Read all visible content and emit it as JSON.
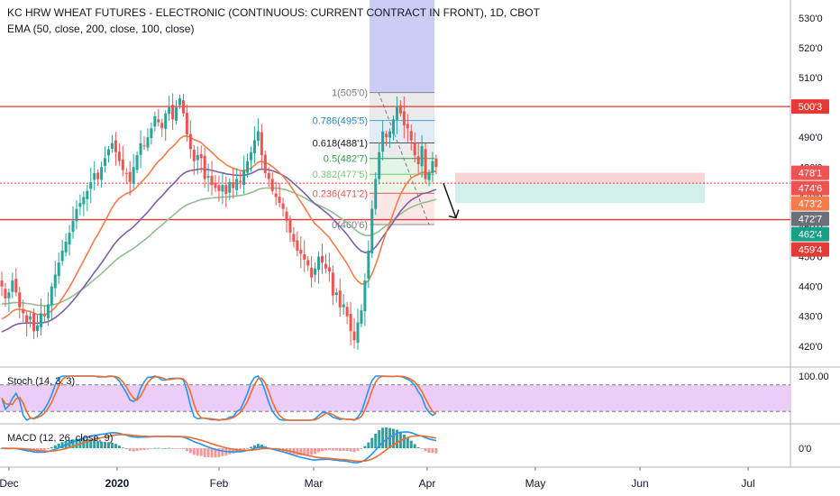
{
  "header": {
    "title": "KC HRW WHEAT FUTURES - ELECTRONIC (CONTINUOUS: CURRENT CONTRACT IN FRONT), 1D, CBOT",
    "ema": "EMA (50, close, 200, close, 100, close)"
  },
  "stoch": {
    "label": "Stoch (14, 3, 3)",
    "scale": [
      "100.00"
    ]
  },
  "macd": {
    "label": "MACD (12, 26, close, 9)",
    "scale": [
      "0'0"
    ]
  },
  "colors": {
    "up": "#26a69a",
    "down": "#ef5350",
    "ema_fast": "#f57c4a",
    "ema_mid": "#7e5fa8",
    "ema_slow": "#8fbf8f",
    "level": "#e53935",
    "stoch_fill": "#e9c8f7",
    "axis": "#131722"
  },
  "chart_data": {
    "type": "candlestick",
    "instrument": "KC HRW WHEAT FUTURES - ELECTRONIC",
    "timeframe": "1D",
    "x_labels": [
      "Dec",
      "2020",
      "Feb",
      "Mar",
      "Apr",
      "May",
      "Jun",
      "Jul"
    ],
    "y_ticks": [
      "530'0",
      "520'0",
      "510'0",
      "500'0",
      "490'0",
      "480'0",
      "470'0",
      "460'0",
      "450'0",
      "440'0",
      "430'0",
      "420'0"
    ],
    "ylim": [
      413,
      536
    ],
    "close_series": [
      440,
      436,
      438,
      442,
      438,
      433,
      431,
      428,
      430,
      425,
      427,
      431,
      430,
      434,
      440,
      444,
      448,
      452,
      455,
      458,
      462,
      466,
      468,
      470,
      472,
      475,
      478,
      476,
      480,
      483,
      486,
      488,
      485,
      482,
      479,
      478,
      475,
      480,
      484,
      488,
      487,
      490,
      493,
      497,
      495,
      493,
      498,
      500,
      496,
      500,
      503,
      498,
      491,
      486,
      482,
      484,
      483,
      476,
      477,
      474,
      473,
      472,
      474,
      471,
      475,
      473,
      476,
      475,
      479,
      482,
      485,
      489,
      492,
      484,
      478,
      476,
      472,
      470,
      468,
      466,
      462,
      458,
      455,
      452,
      451,
      449,
      447,
      443,
      446,
      450,
      448,
      446,
      445,
      437,
      438,
      433,
      434,
      430,
      425,
      422,
      428,
      432,
      442,
      452,
      466,
      476,
      485,
      492,
      490,
      492,
      496,
      500,
      498,
      494,
      493,
      489,
      484,
      481,
      487,
      476,
      478,
      482,
      480
    ],
    "ema_50_end": 473.2,
    "ema_100_end": 462.4,
    "ema_200_end": 459.4,
    "horizontal_levels": [
      500.3,
      462.4
    ],
    "fibonacci": [
      {
        "ratio": "1",
        "value": "505'0"
      },
      {
        "ratio": "0.786",
        "value": "495'5"
      },
      {
        "ratio": "0.618",
        "value": "488'1"
      },
      {
        "ratio": "0.5",
        "value": "482'7"
      },
      {
        "ratio": "0.382",
        "value": "477'5"
      },
      {
        "ratio": "0.236",
        "value": "471'2"
      },
      {
        "ratio": "0",
        "value": "460'6"
      }
    ],
    "position": {
      "stop": 478.1,
      "entry": 474.6,
      "target": 472.7
    },
    "price_tags": [
      {
        "text": "500'3",
        "value": 500.3,
        "color": "#e53935"
      },
      {
        "text": "478'1",
        "value": 478.1,
        "color": "#ef5350"
      },
      {
        "text": "474'6",
        "value": 474.6,
        "color": "#ef5350"
      },
      {
        "text": "473'2",
        "value": 473.2,
        "color": "#f57c4a"
      },
      {
        "text": "472'7",
        "value": 472.7,
        "color": "#6b6f79"
      },
      {
        "text": "462'4",
        "value": 462.4,
        "color": "#16a085"
      },
      {
        "text": "459'4",
        "value": 459.4,
        "color": "#e53935"
      }
    ]
  }
}
